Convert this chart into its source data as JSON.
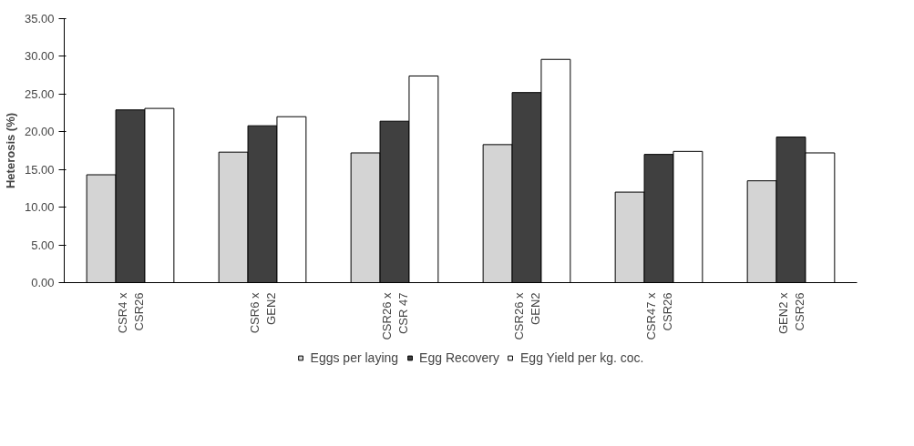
{
  "chart_data": {
    "type": "bar",
    "ylabel": "Heterosis (%)",
    "categories": [
      "CSR4 x\nCSR26",
      "CSR6 x\nGEN2",
      "CSR26 x\nCSR 47",
      "CSR26 x\nGEN2",
      "CSR47 x\nCSR26",
      "GEN2 x\nCSR26"
    ],
    "series": [
      {
        "name": "Eggs per laying",
        "color": "#d4d4d4",
        "values": [
          14.3,
          17.3,
          17.2,
          18.3,
          12.0,
          13.5
        ]
      },
      {
        "name": "Egg Recovery",
        "color": "#404040",
        "values": [
          22.9,
          20.8,
          21.4,
          25.2,
          17.0,
          19.3
        ]
      },
      {
        "name": "Egg Yield per kg. coc.",
        "color": "#ffffff",
        "values": [
          23.1,
          22.0,
          27.4,
          29.6,
          17.4,
          17.2
        ]
      }
    ],
    "ylim": [
      0,
      35
    ],
    "yticks": [
      {
        "value": 0,
        "label": "0.00"
      },
      {
        "value": 5,
        "label": "5.00"
      },
      {
        "value": 10,
        "label": "10.00"
      },
      {
        "value": 15,
        "label": "15.00"
      },
      {
        "value": 20,
        "label": "20.00"
      },
      {
        "value": 25,
        "label": "25.00"
      },
      {
        "value": 30,
        "label": "30.00"
      },
      {
        "value": 35,
        "label": "35.00"
      }
    ],
    "grid": false,
    "legend": "bottom"
  }
}
